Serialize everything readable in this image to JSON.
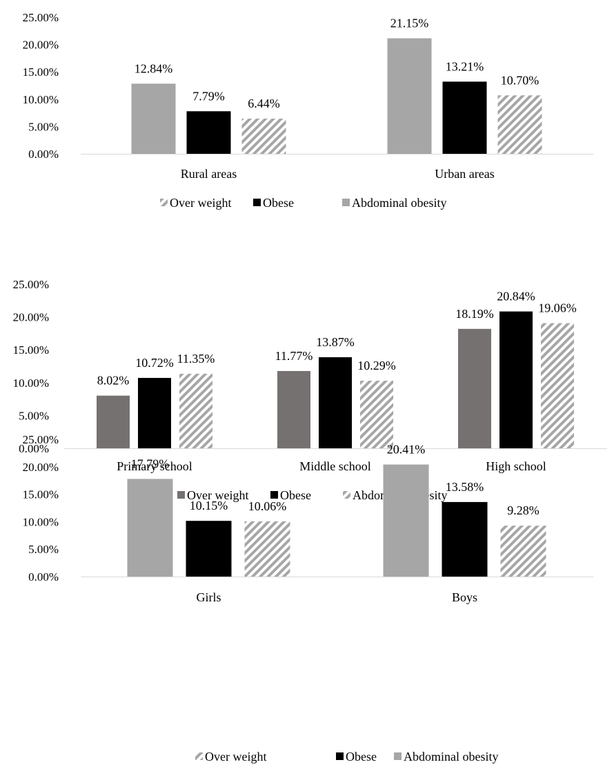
{
  "chart_data": [
    {
      "type": "bar",
      "categories": [
        "Rural areas",
        "Urban areas"
      ],
      "series": [
        {
          "name": "Abdominal obesity",
          "values": [
            12.84,
            21.15
          ],
          "labels": [
            "12.84%",
            "21.15%"
          ],
          "fill": "#a6a6a6"
        },
        {
          "name": "Obese",
          "values": [
            7.79,
            13.21
          ],
          "labels": [
            "7.79%",
            "13.21%"
          ],
          "fill": "#000000"
        },
        {
          "name": "Over weight",
          "values": [
            6.44,
            10.7
          ],
          "labels": [
            "6.44%",
            "10.70%"
          ],
          "fill": "hatch"
        }
      ],
      "legend": [
        {
          "name": "Over weight",
          "fill": "hatch"
        },
        {
          "name": "Obese",
          "fill": "#000000"
        },
        {
          "name": "Abdominal obesity",
          "fill": "#a6a6a6"
        }
      ],
      "yticks": [
        "0.00%",
        "5.00%",
        "10.00%",
        "15.00%",
        "20.00%",
        "25.00%"
      ],
      "ylim": [
        0,
        25
      ],
      "grid": false,
      "legend_position": "bottom"
    },
    {
      "type": "bar",
      "categories": [
        "Primary school",
        "Middle school",
        "High school"
      ],
      "series": [
        {
          "name": "Over weight",
          "values": [
            8.02,
            11.77,
            18.19
          ],
          "labels": [
            "8.02%",
            "11.77%",
            "18.19%"
          ],
          "fill": "#767171"
        },
        {
          "name": "Obese",
          "values": [
            10.72,
            13.87,
            20.84
          ],
          "labels": [
            "10.72%",
            "13.87%",
            "20.84%"
          ],
          "fill": "#000000"
        },
        {
          "name": "Abdominal obesity",
          "values": [
            11.35,
            10.29,
            19.06
          ],
          "labels": [
            "11.35%",
            "10.29%",
            "19.06%"
          ],
          "fill": "hatch"
        }
      ],
      "legend": [
        {
          "name": "Over weight",
          "fill": "#767171"
        },
        {
          "name": "Obese",
          "fill": "#000000"
        },
        {
          "name": "Abdominal obesity",
          "fill": "hatch"
        }
      ],
      "yticks": [
        "0.00%",
        "5.00%",
        "10.00%",
        "15.00%",
        "20.00%",
        "25.00%"
      ],
      "ylim": [
        0,
        25
      ],
      "grid": false,
      "legend_position": "bottom"
    },
    {
      "type": "bar",
      "categories": [
        "Girls",
        "Boys"
      ],
      "series": [
        {
          "name": "Abdominal obesity",
          "values": [
            17.79,
            20.41
          ],
          "labels": [
            "17.79%",
            "20.41%"
          ],
          "fill": "#a6a6a6"
        },
        {
          "name": "Obese",
          "values": [
            10.15,
            13.58
          ],
          "labels": [
            "10.15%",
            "13.58%"
          ],
          "fill": "#000000"
        },
        {
          "name": "Over weight",
          "values": [
            10.06,
            9.28
          ],
          "labels": [
            "10.06%",
            "9.28%"
          ],
          "fill": "hatch"
        }
      ],
      "legend": [
        {
          "name": "Over weight",
          "fill": "hatch"
        },
        {
          "name": "Obese",
          "fill": "#000000"
        },
        {
          "name": "Abdominal obesity",
          "fill": "#a6a6a6"
        }
      ],
      "yticks": [
        "0.00%",
        "5.00%",
        "10.00%",
        "15.00%",
        "20.00%",
        "25.00%"
      ],
      "ylim": [
        0,
        25
      ],
      "grid": false,
      "legend_position": "bottom"
    }
  ]
}
